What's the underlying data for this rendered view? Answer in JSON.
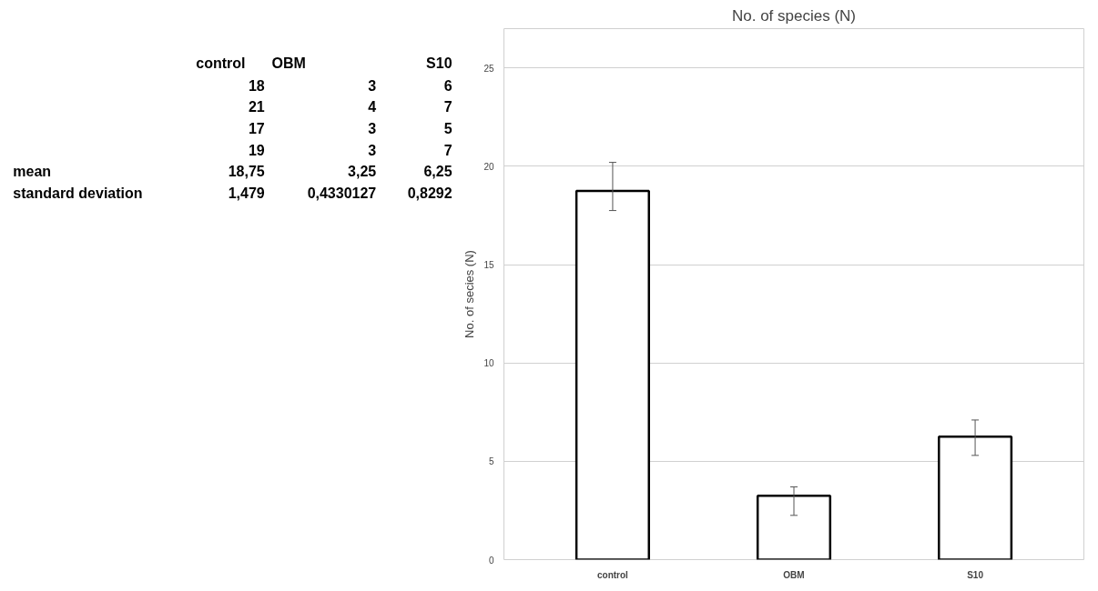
{
  "chart_data": [
    {
      "type": "other",
      "annotations": [
        "\tcontrol\tOBM\tS10",
        "\t18\t3\t6",
        "\t21\t4\t7",
        "\t17\t3\t5",
        "\t19\t3\t7",
        "mean\t18,75\t3,25\t6,25",
        "standard deviation\t1,479\t0,4330127\t0,8292"
      ]
    },
    {
      "type": "bar",
      "title": "No. of species (N)",
      "ylabel": "No. of secies (N)",
      "categories": [
        "control",
        "OBM",
        "S10"
      ],
      "values": [
        18.75,
        3.25,
        6.25
      ],
      "errors": [
        [
          17.75,
          20.2
        ],
        [
          2.25,
          3.7
        ],
        [
          5.3,
          7.1
        ]
      ],
      "color": "#ffffff",
      "ylim": [
        0,
        27
      ],
      "yticks": [
        0,
        5,
        10,
        15,
        20,
        25
      ],
      "grid": "y"
    }
  ]
}
